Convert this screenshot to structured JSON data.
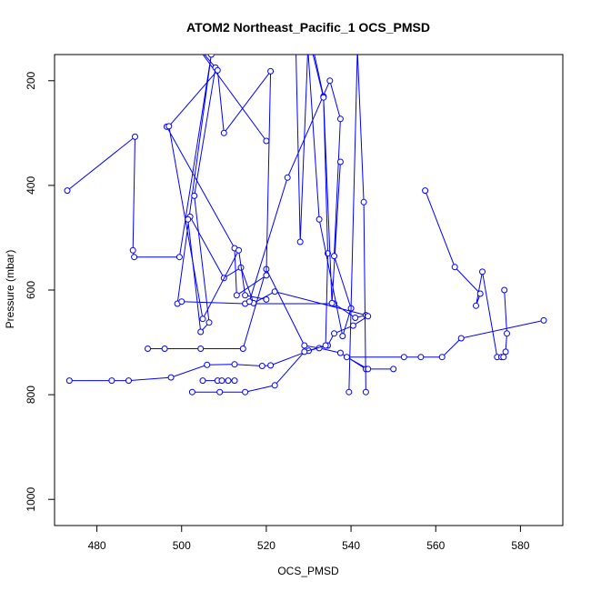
{
  "chart_data": {
    "type": "line",
    "title": "ATOM2 Northeast_Pacific_1 OCS_PMSD",
    "xlabel": "OCS_PMSD",
    "ylabel": "Pressure (mbar)",
    "xlim": [
      470,
      590
    ],
    "ylim": [
      1050,
      150
    ],
    "y_reversed": true,
    "grid": false,
    "legend": "none",
    "xticks": [
      480,
      500,
      520,
      540,
      560,
      580
    ],
    "yticks": [
      200,
      400,
      600,
      800,
      1000
    ],
    "line_color": "#0000ff",
    "marker": "open-circle",
    "series": [
      {
        "x": [
          473.0,
          489.0,
          488.5,
          488.8,
          499.5,
          507.0,
          499.0,
          500.0,
          515.0,
          536.0,
          541.0,
          543.5,
          522.0,
          517.0,
          514.0,
          510.0,
          502.0,
          501.5,
          504.5,
          506.5,
          503.0,
          508.0,
          502.5,
          520.0
        ],
        "y": [
          410,
          307,
          524,
          537,
          537,
          150,
          626,
          622,
          626,
          626,
          653,
          648,
          603,
          625,
          557,
          577,
          460,
          465,
          680,
          662,
          420,
          175,
          122,
          315
        ]
      },
      {
        "x": [
          473.5,
          483.5,
          487.5,
          497.5,
          506.0,
          512.5,
          519.0,
          521.0,
          530.0,
          534.5,
          536.0,
          540.5,
          544.0
        ],
        "y": [
          773,
          773,
          773,
          767,
          743,
          742,
          745,
          744,
          716,
          706,
          683,
          668,
          650
        ]
      },
      {
        "x": [
          492.0,
          496.0,
          504.5,
          514.5,
          520.0,
          529.0,
          532.5,
          537.5,
          543.5,
          550.0,
          544.0,
          539.0,
          552.5,
          556.5,
          561.5,
          566.0,
          585.5
        ],
        "y": [
          712,
          712,
          712,
          712,
          560,
          706,
          711,
          720,
          751,
          751,
          751,
          728,
          728,
          728,
          728,
          692,
          658
        ]
      },
      {
        "x": [
          502.5,
          509.0,
          515.0,
          522.0,
          529.0,
          534.0,
          534.5,
          533.5,
          530.0,
          528.0,
          527.0
        ],
        "y": [
          795,
          795,
          795,
          782,
          718,
          706,
          530,
          230,
          100,
          508,
          145
        ]
      },
      {
        "x": [
          505.0,
          508.5,
          509.5,
          511.0,
          512.5
        ],
        "y": [
          773,
          773,
          773,
          773,
          773
        ]
      },
      {
        "x": [
          516.0,
          525.0,
          535.0,
          537.5,
          536.0,
          540.0,
          538.0,
          532.5,
          529.5,
          533.5,
          535.5,
          537.5
        ],
        "y": [
          622,
          385,
          200,
          273,
          535,
          635,
          688,
          465,
          100,
          232,
          625,
          355
        ]
      },
      {
        "x": [
          496.5,
          512.5,
          513.0,
          520.0,
          521.0,
          510.0,
          508.5,
          497.0,
          505.0,
          513.5,
          515.0,
          520.0
        ],
        "y": [
          288,
          520,
          610,
          572,
          182,
          300,
          180,
          287,
          655,
          524,
          610,
          618
        ]
      },
      {
        "x": [
          557.5,
          564.5,
          570.5,
          569.5,
          571.0,
          574.5,
          575.5,
          576.0,
          576.5,
          576.8,
          576.2
        ],
        "y": [
          410,
          556,
          607,
          630,
          565,
          728,
          728,
          728,
          718,
          683,
          600
        ]
      },
      {
        "x": [
          543.5,
          543.0,
          541.5,
          539.5
        ],
        "y": [
          795,
          432,
          140,
          795
        ]
      }
    ]
  }
}
